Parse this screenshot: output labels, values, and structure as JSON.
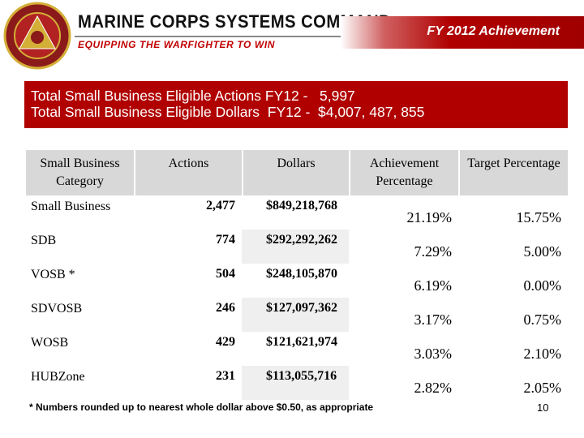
{
  "header": {
    "organization": "MARINE CORPS SYSTEMS COMMAND",
    "motto": "EQUIPPING THE WARFIGHTER TO WIN",
    "section": "FY 2012 Achievement"
  },
  "summary": [
    "Total Small Business Eligible Actions FY12 -   5,997",
    "Total Small Business Eligible Dollars  FY12 -  $4,007, 487, 855"
  ],
  "table": {
    "columns": [
      "Small Business Category",
      "Actions",
      "Dollars",
      "Achievement Percentage",
      "Target Percentage"
    ],
    "rows": [
      [
        "Small Business",
        "2,477",
        "$849,218,768",
        "21.19%",
        "15.75%"
      ],
      [
        "SDB",
        "774",
        "$292,292,262",
        "7.29%",
        "5.00%"
      ],
      [
        "VOSB *",
        "504",
        "$248,105,870",
        "6.19%",
        "0.00%"
      ],
      [
        "SDVOSB",
        "246",
        "$127,097,362",
        "3.17%",
        "0.75%"
      ],
      [
        "WOSB",
        "429",
        "$121,621,974",
        "3.03%",
        "2.10%"
      ],
      [
        "HUBZone",
        "231",
        "$113,055,716",
        "2.82%",
        "2.05%"
      ]
    ]
  },
  "footnote": "* Numbers rounded up to nearest whole dollar above $0.50, as appropriate",
  "page_number": "10"
}
